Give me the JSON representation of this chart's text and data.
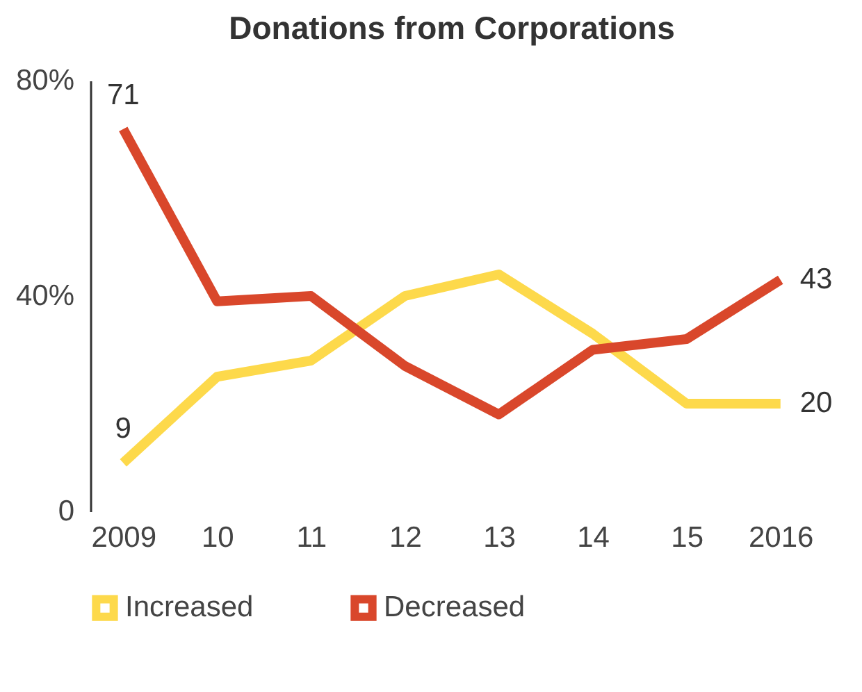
{
  "chart_data": {
    "type": "line",
    "title": "Donations from Corporations",
    "categories": [
      "2009",
      "10",
      "11",
      "12",
      "13",
      "14",
      "15",
      "2016"
    ],
    "series": [
      {
        "name": "Increased",
        "color": "#fdd94b",
        "values": [
          9,
          25,
          28,
          40,
          44,
          33,
          20,
          20
        ],
        "value_labels": [
          "9",
          null,
          null,
          null,
          null,
          null,
          null,
          "20"
        ]
      },
      {
        "name": "Decreased",
        "color": "#d9472b",
        "values": [
          71,
          39,
          40,
          27,
          18,
          30,
          32,
          43
        ],
        "value_labels": [
          "71",
          null,
          null,
          null,
          null,
          null,
          null,
          "43"
        ]
      }
    ],
    "ylim": [
      0,
      80
    ],
    "yticks": [
      0,
      {
        "value": 40,
        "label": "40%"
      },
      {
        "value": 80,
        "label": "80%"
      }
    ],
    "grid": false,
    "legend": "bottom",
    "marker": "none",
    "line_style": "solid"
  }
}
